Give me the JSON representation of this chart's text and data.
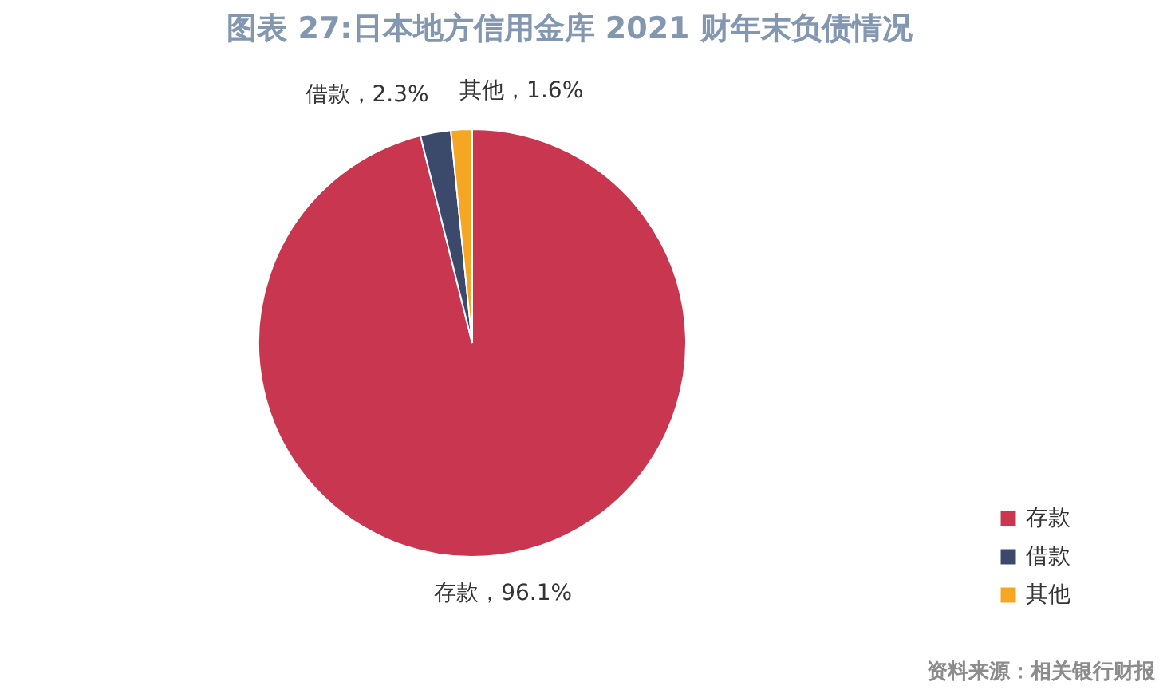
{
  "chart_data": {
    "type": "pie",
    "title": "图表 27:日本地方信用金库 2021 财年末负债情况",
    "categories": [
      "存款",
      "借款",
      "其他"
    ],
    "values": [
      96.1,
      2.3,
      1.6
    ],
    "colors": [
      "#c8374f",
      "#3b4a6b",
      "#f5a623"
    ],
    "value_labels": [
      "存款，96.1%",
      "借款，2.3%",
      "其他，1.6%"
    ],
    "legend": "bottom right",
    "annotations": [
      "资料来源：相关银行财报"
    ]
  }
}
